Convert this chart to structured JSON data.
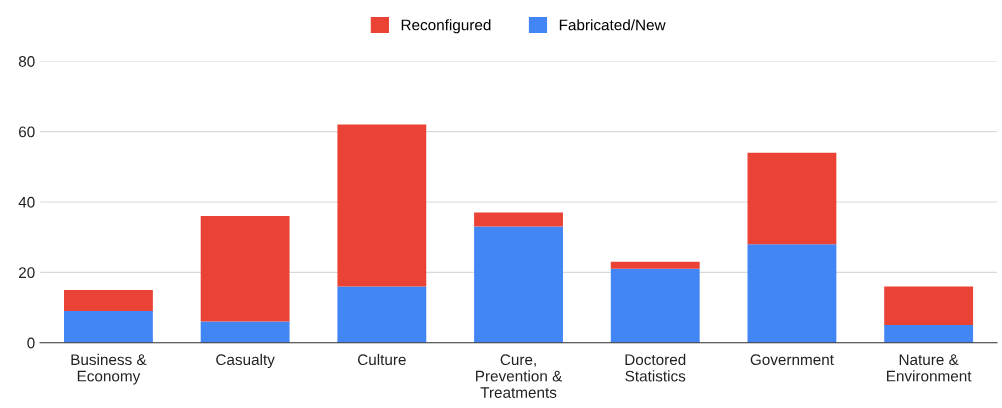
{
  "chart_data": {
    "type": "bar",
    "stacked": true,
    "categories": [
      "Business &\nEconomy",
      "Casualty",
      "Culture",
      "Cure,\nPrevention &\nTreatments",
      "Doctored\nStatistics",
      "Government",
      "Nature &\nEnvironment"
    ],
    "series": [
      {
        "name": "Fabricated/New",
        "color": "#4285f4",
        "values": [
          9,
          6,
          16,
          33,
          21,
          28,
          5
        ]
      },
      {
        "name": "Reconfigured",
        "color": "#ea4335",
        "values": [
          6,
          30,
          46,
          4,
          2,
          26,
          11
        ]
      }
    ],
    "ylim": [
      0,
      80
    ],
    "yticks": [
      0,
      20,
      40,
      60,
      80
    ],
    "grid": "y",
    "legend": "top"
  }
}
